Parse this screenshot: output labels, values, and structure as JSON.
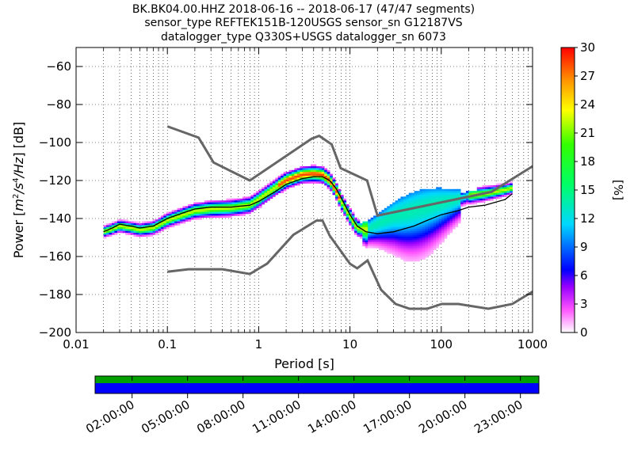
{
  "figure": {
    "title_lines": [
      "BK.BK04.00.HHZ   2018-06-16 -- 2018-06-17  (47/47 segments)",
      "sensor_type REFTEK151B-120USGS sensor_sn G12187VS",
      "datalogger_type Q330S+USGS datalogger_sn 6073"
    ]
  },
  "chart_data": {
    "type": "heatmap",
    "xlabel": "Period [s]",
    "ylabel": "Power [m²/s⁴/Hz] [dB]",
    "ylabel_parts": {
      "prefix": "Power [",
      "m": "m",
      "e2": "2",
      "s": "/s",
      "e4": "4",
      "hz": "/Hz",
      "suffix": "] [dB]"
    },
    "x_scale": "log",
    "xlim": [
      0.01,
      1000
    ],
    "ylim": [
      -200,
      -50
    ],
    "x_ticks": [
      0.01,
      0.1,
      1,
      10,
      100,
      1000
    ],
    "x_tick_labels": [
      "0.01",
      "0.1",
      "1",
      "10",
      "100",
      "1000"
    ],
    "y_ticks": [
      -200,
      -180,
      -160,
      -140,
      -120,
      -100,
      -80,
      -60
    ],
    "y_tick_labels": [
      "−200",
      "−180",
      "−160",
      "−140",
      "−120",
      "−100",
      "−80",
      "−60"
    ],
    "grid": "dotted",
    "colorbar": {
      "label": "[%]",
      "range": [
        0,
        30
      ],
      "ticks": [
        0,
        3,
        6,
        9,
        12,
        15,
        18,
        21,
        24,
        27,
        30
      ],
      "tick_labels": [
        "0",
        "3",
        "6",
        "9",
        "12",
        "15",
        "18",
        "21",
        "24",
        "27",
        "30"
      ],
      "colormap": "pqlx"
    },
    "noise_model_high": {
      "x": [
        0.1,
        0.22,
        0.32,
        0.8,
        3.8,
        4.6,
        6.3,
        7.9,
        15.4,
        20,
        354.8,
        1000
      ],
      "y": [
        -91.5,
        -97.4,
        -110.5,
        -120,
        -98,
        -96.5,
        -101,
        -113.5,
        -120,
        -138.5,
        -126,
        -112.5
      ]
    },
    "noise_model_low": {
      "x": [
        0.1,
        0.17,
        0.4,
        0.8,
        1.24,
        2.4,
        4.3,
        5,
        6,
        10,
        12,
        15.6,
        21.9,
        31.6,
        45,
        70,
        101,
        154,
        328,
        600,
        1000
      ],
      "y": [
        -168,
        -166.7,
        -166.7,
        -169.2,
        -163.7,
        -148.6,
        -141.1,
        -141.1,
        -149,
        -163.8,
        -166.2,
        -162.1,
        -177.5,
        -185,
        -187.5,
        -187.5,
        -185,
        -185,
        -187.5,
        -185,
        -178.5
      ]
    },
    "mode_curve": {
      "x": [
        0.02,
        0.025,
        0.03,
        0.04,
        0.05,
        0.07,
        0.1,
        0.15,
        0.2,
        0.3,
        0.5,
        0.8,
        1,
        1.5,
        2,
        3,
        4,
        5,
        6,
        7,
        8,
        10,
        12,
        15,
        20,
        30,
        50,
        70,
        100,
        150,
        200,
        300,
        500,
        600
      ],
      "y": [
        -147,
        -145,
        -143,
        -144,
        -145,
        -144,
        -140,
        -137,
        -135,
        -134,
        -134,
        -133,
        -131,
        -126,
        -122,
        -119,
        -118,
        -118,
        -120,
        -124,
        -129,
        -138,
        -144,
        -147,
        -148,
        -147,
        -144,
        -141,
        -138,
        -136,
        -134,
        -133,
        -130,
        -127
      ]
    },
    "pdf_ridge": {
      "x": [
        0.02,
        0.025,
        0.03,
        0.04,
        0.05,
        0.07,
        0.1,
        0.15,
        0.2,
        0.3,
        0.5,
        0.8,
        1,
        1.5,
        2,
        3,
        4,
        5,
        6,
        7,
        8,
        10,
        12,
        15,
        20,
        30,
        50,
        70,
        100,
        150,
        200,
        300,
        500,
        600
      ],
      "y": [
        -147,
        -145.5,
        -144,
        -145,
        -146,
        -145,
        -141,
        -138,
        -136,
        -135,
        -134.5,
        -133,
        -130,
        -124,
        -120,
        -117,
        -116.5,
        -117,
        -120,
        -125,
        -131,
        -139,
        -145,
        -146,
        -143,
        -139,
        -136,
        -134,
        -132,
        -130,
        -128,
        -127,
        -125,
        -124
      ]
    },
    "time_coverage": {
      "tick_labels": [
        "02:00:00",
        "05:00:00",
        "08:00:00",
        "11:00:00",
        "14:00:00",
        "17:00:00",
        "20:00:00",
        "23:00:00"
      ],
      "tick_hours": [
        2,
        5,
        8,
        11,
        14,
        17,
        20,
        23
      ],
      "range_hours": [
        0,
        24
      ],
      "data_color": "#0000ff",
      "segment_color": "#00a000"
    }
  }
}
